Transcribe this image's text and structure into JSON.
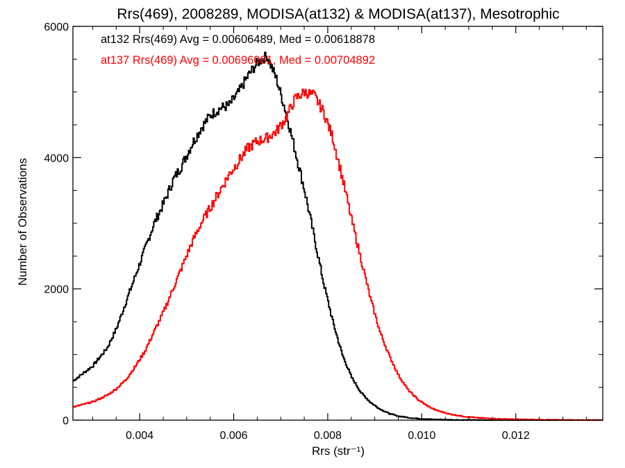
{
  "chart_data": {
    "type": "line",
    "title": "Rrs(469), 2008289, MODISA(at132) & MODISA(at137), Mesotrophic",
    "xlabel": "Rrs (str⁻¹)",
    "ylabel": "Number of Observations",
    "xlim": [
      0.00258,
      0.01385
    ],
    "ylim": [
      0,
      6000
    ],
    "x_ticks": [
      0.004,
      0.006,
      0.008,
      0.01,
      0.012
    ],
    "x_tick_labels": [
      "0.004",
      "0.006",
      "0.008",
      "0.010",
      "0.012"
    ],
    "y_ticks": [
      0,
      2000,
      4000,
      6000
    ],
    "y_tick_labels": [
      "0",
      "2000",
      "4000",
      "6000"
    ],
    "grid": false,
    "style": "histogram-step",
    "annotations": [
      {
        "text": "at132 Rrs(469) Avg = 0.00606489, Med = 0.00618878",
        "color": "#000000"
      },
      {
        "text": "at137 Rrs(469) Avg = 0.00696081, Med = 0.00704892",
        "color": "#ff0000"
      }
    ],
    "series": [
      {
        "color": "#000000",
        "points": [
          [
            0.00258,
            600
          ],
          [
            0.003,
            830
          ],
          [
            0.0033,
            1100
          ],
          [
            0.0035,
            1400
          ],
          [
            0.0037,
            1800
          ],
          [
            0.0039,
            2200
          ],
          [
            0.0041,
            2600
          ],
          [
            0.0043,
            3000
          ],
          [
            0.0045,
            3300
          ],
          [
            0.0047,
            3650
          ],
          [
            0.0049,
            3900
          ],
          [
            0.0051,
            4200
          ],
          [
            0.0053,
            4450
          ],
          [
            0.0055,
            4650
          ],
          [
            0.0057,
            4750
          ],
          [
            0.0059,
            4800
          ],
          [
            0.0061,
            5000
          ],
          [
            0.0063,
            5250
          ],
          [
            0.0065,
            5450
          ],
          [
            0.0067,
            5550
          ],
          [
            0.0069,
            5200
          ],
          [
            0.0071,
            4700
          ],
          [
            0.0073,
            4100
          ],
          [
            0.0075,
            3500
          ],
          [
            0.0077,
            2800
          ],
          [
            0.0079,
            2100
          ],
          [
            0.0081,
            1500
          ],
          [
            0.0083,
            1000
          ],
          [
            0.0085,
            650
          ],
          [
            0.0087,
            420
          ],
          [
            0.0089,
            270
          ],
          [
            0.0091,
            170
          ],
          [
            0.0093,
            100
          ],
          [
            0.0095,
            60
          ],
          [
            0.0098,
            30
          ],
          [
            0.0102,
            12
          ],
          [
            0.0106,
            5
          ],
          [
            0.011,
            2
          ],
          [
            0.0118,
            0
          ],
          [
            0.01385,
            0
          ]
        ]
      },
      {
        "color": "#ff0000",
        "points": [
          [
            0.00258,
            200
          ],
          [
            0.003,
            280
          ],
          [
            0.0033,
            380
          ],
          [
            0.0035,
            480
          ],
          [
            0.0037,
            620
          ],
          [
            0.0039,
            820
          ],
          [
            0.0041,
            1050
          ],
          [
            0.0043,
            1350
          ],
          [
            0.0045,
            1650
          ],
          [
            0.0047,
            2000
          ],
          [
            0.0049,
            2350
          ],
          [
            0.0051,
            2700
          ],
          [
            0.0053,
            3000
          ],
          [
            0.0055,
            3250
          ],
          [
            0.0057,
            3500
          ],
          [
            0.0059,
            3750
          ],
          [
            0.0061,
            3950
          ],
          [
            0.0063,
            4150
          ],
          [
            0.0065,
            4250
          ],
          [
            0.0067,
            4300
          ],
          [
            0.0069,
            4400
          ],
          [
            0.0071,
            4600
          ],
          [
            0.0073,
            4900
          ],
          [
            0.0075,
            5000
          ],
          [
            0.0077,
            4950
          ],
          [
            0.0079,
            4700
          ],
          [
            0.0081,
            4300
          ],
          [
            0.0083,
            3700
          ],
          [
            0.0085,
            3050
          ],
          [
            0.0087,
            2450
          ],
          [
            0.0089,
            1850
          ],
          [
            0.0091,
            1350
          ],
          [
            0.0093,
            980
          ],
          [
            0.0095,
            680
          ],
          [
            0.0097,
            460
          ],
          [
            0.0099,
            320
          ],
          [
            0.0101,
            220
          ],
          [
            0.0103,
            150
          ],
          [
            0.0106,
            90
          ],
          [
            0.0109,
            55
          ],
          [
            0.0112,
            35
          ],
          [
            0.0116,
            20
          ],
          [
            0.012,
            12
          ],
          [
            0.0125,
            6
          ],
          [
            0.013,
            3
          ],
          [
            0.01385,
            1
          ]
        ]
      }
    ]
  }
}
